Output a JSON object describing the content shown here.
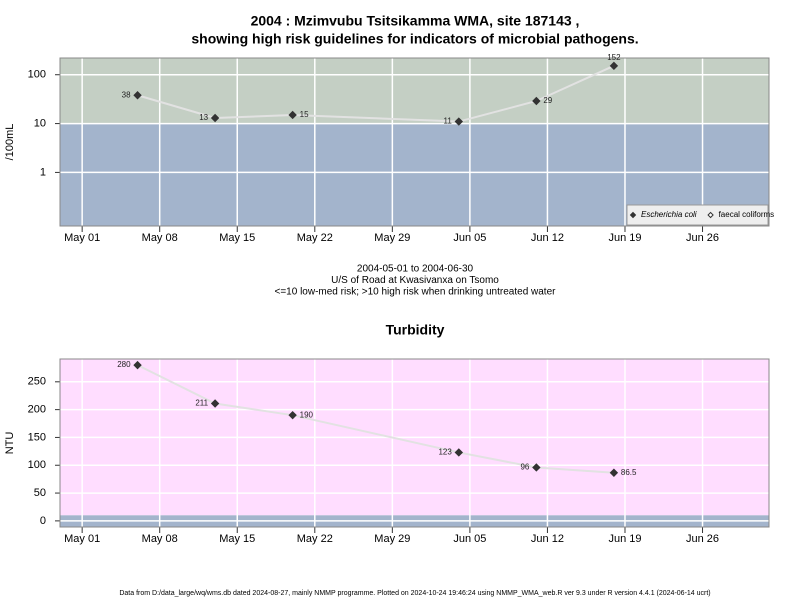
{
  "chart_data": [
    {
      "type": "line",
      "title": "2004 : Mzimvubu Tsitsikamma WMA, site 187143 ,",
      "subtitle": "showing high risk guidelines for indicators of microbial pathogens.",
      "ylabel": "/100mL",
      "log_scale": true,
      "x": [
        "2004-05-06",
        "2004-05-13",
        "2004-05-20",
        "2004-06-04",
        "2004-06-11",
        "2004-06-18"
      ],
      "series": [
        {
          "name": "Escherichia coli",
          "color": "#333333",
          "marker": "filled",
          "values": [
            38,
            13,
            15,
            11,
            29,
            152
          ]
        },
        {
          "name": "faecal coliforms",
          "color": "#333333",
          "marker": "open",
          "values": [
            null,
            null,
            null,
            null,
            null,
            null
          ]
        }
      ],
      "xlim": [
        "2004-04-29",
        "2004-07-02"
      ],
      "xticks": [
        {
          "value": "2004-05-01",
          "label": "May 01"
        },
        {
          "value": "2004-05-08",
          "label": "May 08"
        },
        {
          "value": "2004-05-15",
          "label": "May 15"
        },
        {
          "value": "2004-05-22",
          "label": "May 22"
        },
        {
          "value": "2004-05-29",
          "label": "May 29"
        },
        {
          "value": "2004-06-05",
          "label": "Jun 05"
        },
        {
          "value": "2004-06-12",
          "label": "Jun 12"
        },
        {
          "value": "2004-06-19",
          "label": "Jun 19"
        },
        {
          "value": "2004-06-26",
          "label": "Jun 26"
        }
      ],
      "ylim": [
        0.08,
        220
      ],
      "yticks": [
        1,
        10,
        100
      ],
      "grid": true,
      "bands": [
        {
          "above": 10,
          "color": "#c4cfc4"
        },
        {
          "below": 10,
          "color": "#a3b4cc"
        }
      ],
      "legend": "bottom-right",
      "annotations": [
        "2004-05-01 to 2004-06-30",
        "U/S of Road at Kwasivanxa on Tsomo",
        "<=10 low-med risk; >10 high risk when drinking untreated water"
      ]
    },
    {
      "type": "line",
      "title": "Turbidity",
      "ylabel": "NTU",
      "log_scale": false,
      "x": [
        "2004-05-06",
        "2004-05-13",
        "2004-05-20",
        "2004-06-04",
        "2004-06-11",
        "2004-06-18"
      ],
      "series": [
        {
          "color": "#333333",
          "marker": "filled",
          "values": [
            280,
            211,
            190,
            123,
            96,
            86.5
          ]
        }
      ],
      "xlim": [
        "2004-04-29",
        "2004-07-02"
      ],
      "xticks": [
        {
          "value": "2004-05-01",
          "label": "May 01"
        },
        {
          "value": "2004-05-08",
          "label": "May 08"
        },
        {
          "value": "2004-05-15",
          "label": "May 15"
        },
        {
          "value": "2004-05-22",
          "label": "May 22"
        },
        {
          "value": "2004-05-29",
          "label": "May 29"
        },
        {
          "value": "2004-06-05",
          "label": "Jun 05"
        },
        {
          "value": "2004-06-12",
          "label": "Jun 12"
        },
        {
          "value": "2004-06-19",
          "label": "Jun 19"
        },
        {
          "value": "2004-06-26",
          "label": "Jun 26"
        }
      ],
      "ylim": [
        -11,
        291
      ],
      "yticks": [
        0,
        50,
        100,
        150,
        200,
        250
      ],
      "grid": true,
      "bands": [
        {
          "above": 10,
          "color": "#ffddff"
        },
        {
          "below": 10,
          "color": "#a3b4cc"
        }
      ]
    }
  ],
  "footer": "Data from D:/data_large/wq/wms.db dated 2024-08-27, mainly NMMP programme. Plotted on 2024-10-24 19:46:24 using NMMP_WMA_web.R ver 9.3 under R version 4.4.1 (2024-06-14 ucrt)"
}
